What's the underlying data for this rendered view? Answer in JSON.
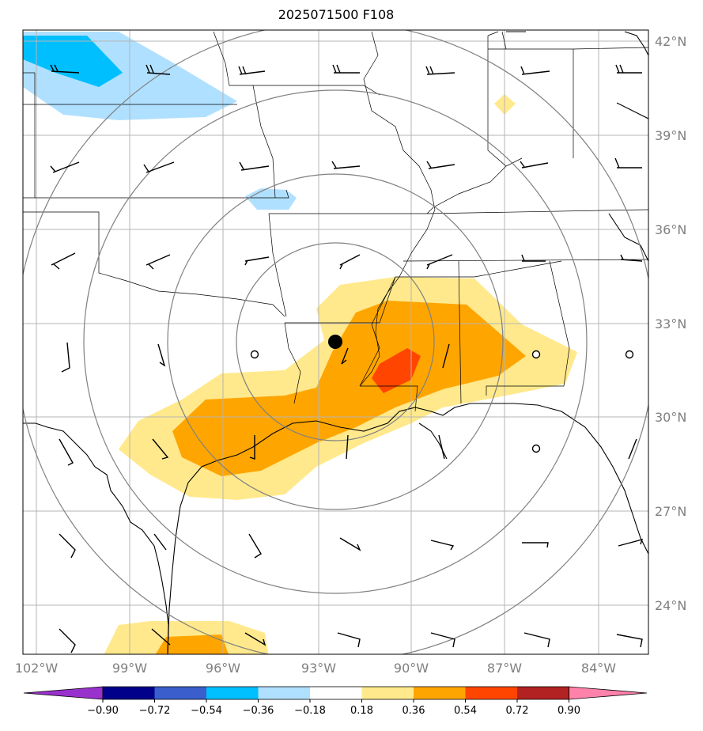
{
  "title": "2025071500 F108",
  "lat_labels": [
    "42°N",
    "39°N",
    "36°N",
    "33°N",
    "30°N",
    "27°N",
    "24°N"
  ],
  "lon_labels": [
    "102°W",
    "99°W",
    "96°W",
    "93°W",
    "90°W",
    "87°W",
    "84°W"
  ],
  "colorbar": {
    "labels": [
      "−0.90",
      "−0.72",
      "−0.54",
      "−0.36",
      "−0.18",
      "0.18",
      "0.36",
      "0.54",
      "0.72",
      "0.90"
    ],
    "colors": [
      "#9932cc",
      "#00008b",
      "#3a5fcd",
      "#00bfff",
      "#b0e0ff",
      "#ffffff",
      "#ffe98c",
      "#ffa500",
      "#ff4500",
      "#b22222",
      "#ff82ab"
    ]
  },
  "map": {
    "extent": {
      "lon_min": -102.5,
      "lon_max": -82.3,
      "lat_min": 22.5,
      "lat_max": 42.4
    },
    "center_marker": {
      "lon": -92.6,
      "lat": 32.4
    },
    "range_ring_count": 4,
    "grid": true
  }
}
